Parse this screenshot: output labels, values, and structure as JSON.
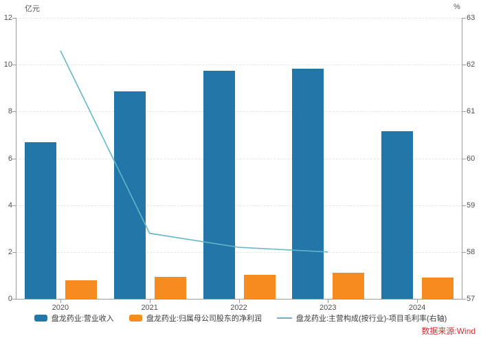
{
  "chart_data": {
    "type": "bar",
    "title": "",
    "categories": [
      "2020",
      "2021",
      "2022",
      "2023",
      "2024"
    ],
    "series": [
      {
        "name": "盘龙药业:营业收入",
        "type": "bar",
        "axis": "left",
        "color": "#2377a8",
        "values": [
          6.68,
          8.86,
          9.74,
          9.83,
          7.17
        ]
      },
      {
        "name": "盘龙药业:归属母公司股东的净利润",
        "type": "bar",
        "axis": "left",
        "color": "#f68c1f",
        "values": [
          0.78,
          0.93,
          1.03,
          1.12,
          0.9
        ]
      },
      {
        "name": "盘龙药业:主营构成(按行业)-项目毛利率(右轴)",
        "type": "line",
        "axis": "right",
        "color": "#62b6c7",
        "values": [
          62.3,
          58.4,
          58.1,
          58.0,
          null
        ]
      }
    ],
    "left_axis": {
      "label": "亿元",
      "min": 0,
      "max": 12,
      "ticks": [
        0,
        2,
        4,
        6,
        8,
        10,
        12
      ]
    },
    "right_axis": {
      "label": "%",
      "min": 57,
      "max": 63,
      "ticks": [
        57,
        58,
        59,
        60,
        61,
        62,
        63
      ]
    },
    "grid": true,
    "legend_position": "bottom"
  },
  "source_note": "数据来源:Wind"
}
